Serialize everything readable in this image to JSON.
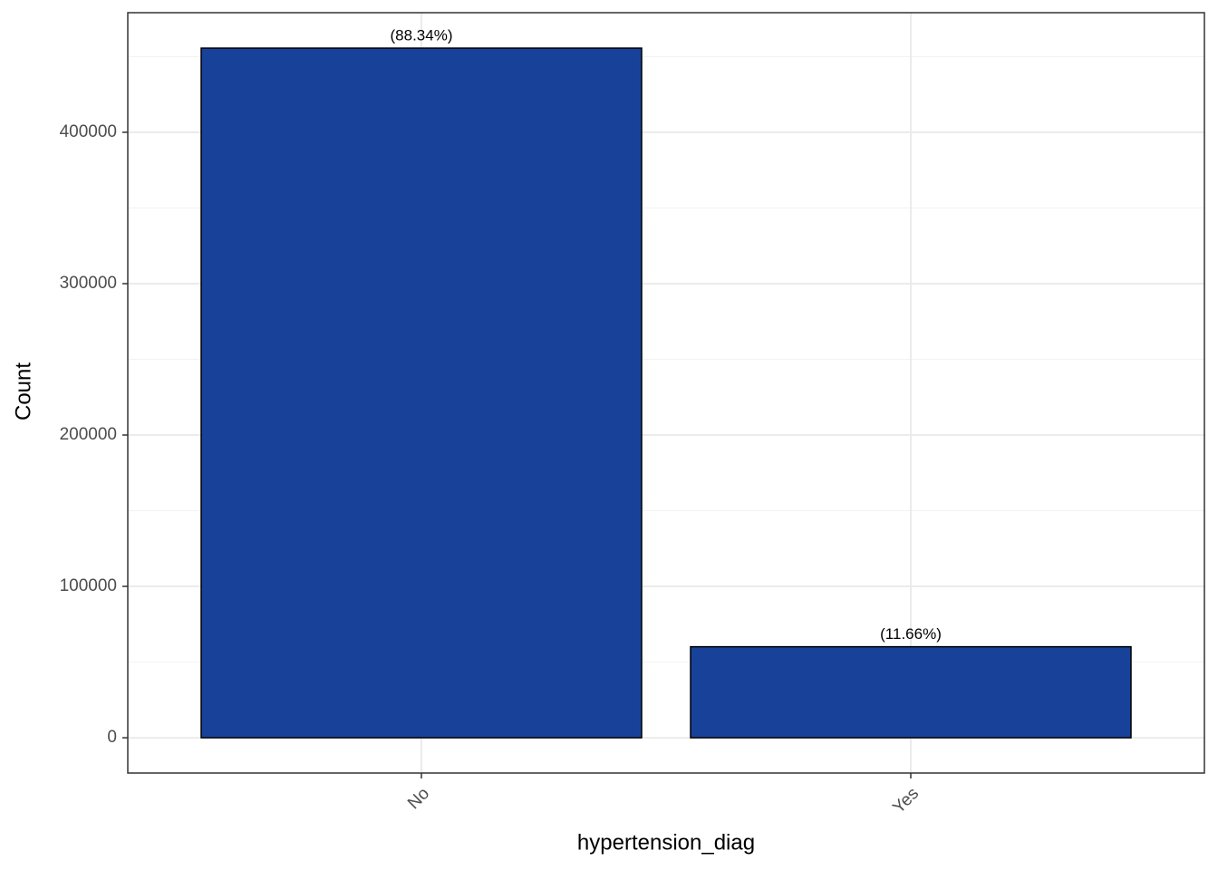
{
  "chart_data": {
    "type": "bar",
    "x_label": "hypertension_diag",
    "y_label": "Count",
    "categories": [
      "No",
      "Yes"
    ],
    "values": [
      455600,
      60130
    ],
    "bar_labels": [
      "(88.34%)",
      "(11.66%)"
    ],
    "color": "#18429a",
    "ylim": [
      -23300,
      479000
    ],
    "yticks": [
      0,
      100000,
      200000,
      300000,
      400000
    ],
    "minor_yticks": [
      50000,
      150000,
      250000,
      350000,
      450000
    ],
    "grid": true
  }
}
